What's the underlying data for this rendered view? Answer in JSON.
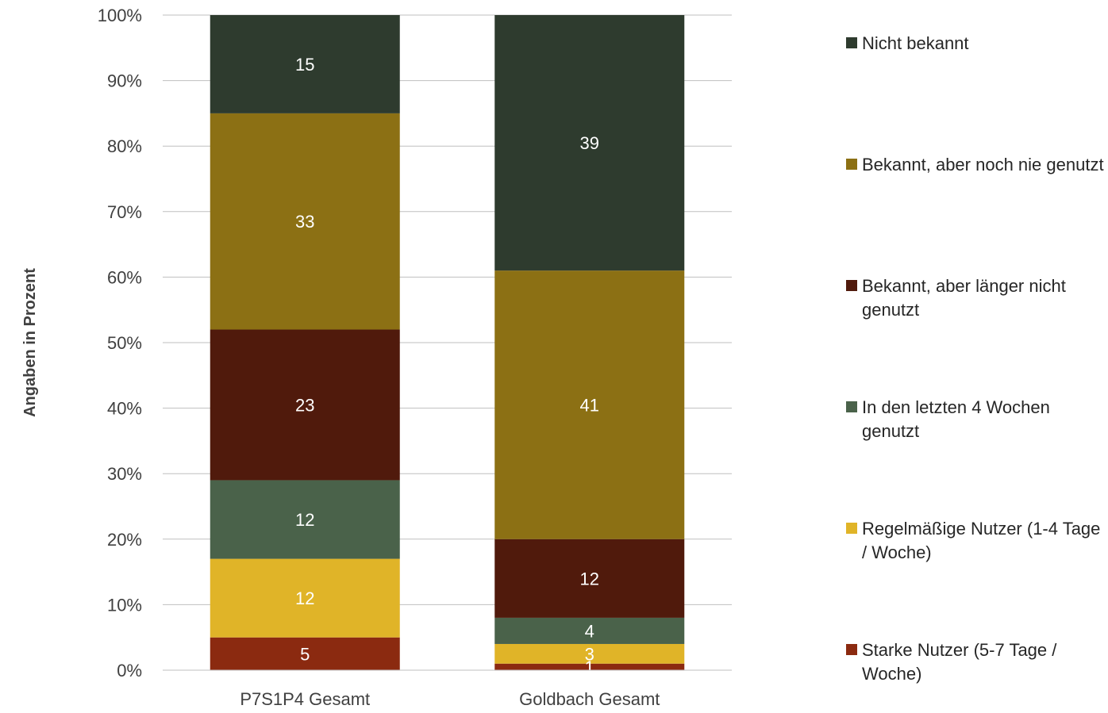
{
  "chart_data": {
    "type": "bar",
    "stacked": true,
    "percent_stacked": true,
    "categories": [
      "P7S1P4 Gesamt",
      "Goldbach Gesamt"
    ],
    "ylabel": "Angaben in Prozent",
    "ylim": [
      0,
      100
    ],
    "ytick_labels": [
      "0%",
      "10%",
      "20%",
      "30%",
      "40%",
      "50%",
      "60%",
      "70%",
      "80%",
      "90%",
      "100%"
    ],
    "grid": true,
    "legend_position": "right",
    "series": [
      {
        "name": "Starke Nutzer (5-7 Tage / Woche)",
        "color": "#8b2a10",
        "values": [
          5,
          1
        ]
      },
      {
        "name": "Regelmäßige Nutzer (1-4 Tage / Woche)",
        "color": "#e0b428",
        "values": [
          12,
          3
        ]
      },
      {
        "name": "In den letzten 4 Wochen genutzt",
        "color": "#4a624a",
        "values": [
          12,
          4
        ]
      },
      {
        "name": "Bekannt, aber länger nicht genutzt",
        "color": "#501a0c",
        "values": [
          23,
          12
        ]
      },
      {
        "name": "Bekannt, aber noch nie genutzt",
        "color": "#8c7014",
        "values": [
          33,
          41
        ]
      },
      {
        "name": "Nicht bekannt",
        "color": "#2e3b2e",
        "values": [
          15,
          39
        ]
      }
    ]
  }
}
